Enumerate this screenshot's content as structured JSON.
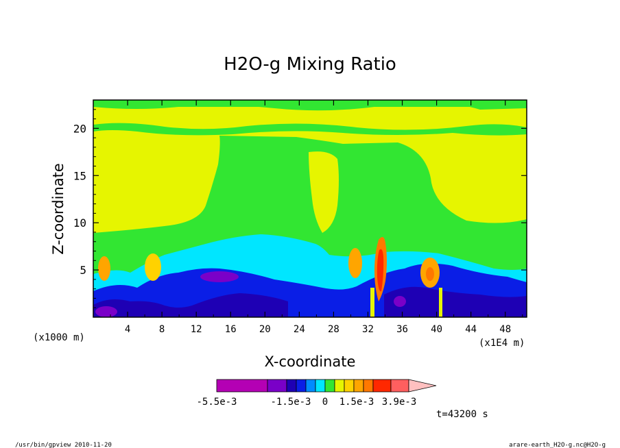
{
  "chart_data": {
    "type": "contour",
    "title": "H2O-g Mixing Ratio",
    "xlabel": "X-coordinate",
    "ylabel": "Z-coordinate",
    "x_unit": "(x1E4 m)",
    "y_unit": "(x1000 m)",
    "xlim": [
      0,
      50.5
    ],
    "ylim": [
      0,
      23
    ],
    "x_ticks": [
      "4",
      "8",
      "12",
      "16",
      "20",
      "24",
      "28",
      "32",
      "36",
      "40",
      "44",
      "48"
    ],
    "x_tick_values": [
      4,
      8,
      12,
      16,
      20,
      24,
      28,
      32,
      36,
      40,
      44,
      48
    ],
    "y_ticks": [
      "5",
      "10",
      "15",
      "20"
    ],
    "y_tick_values": [
      5,
      10,
      15,
      20
    ],
    "time_label": "t=43200 s",
    "colorbar": {
      "colors": [
        "#b400b4",
        "#7a00c8",
        "#1e00b4",
        "#0a1ee6",
        "#008cff",
        "#00e6ff",
        "#32e632",
        "#e6f500",
        "#ffd200",
        "#ffa500",
        "#ff7800",
        "#ff2800",
        "#ff5f5f",
        "#ff9696",
        "#ffc0c0"
      ],
      "labels": [
        "-5.5e-3",
        "-1.5e-3",
        "0",
        "1.5e-3",
        "3.9e-3"
      ]
    },
    "field_bands": [
      {
        "name": "top-green-band",
        "color": "#32e632"
      },
      {
        "name": "upper-yellow",
        "color": "#e6f500"
      },
      {
        "name": "mid-green",
        "color": "#32e632"
      },
      {
        "name": "cyan-layer",
        "color": "#00e6ff"
      },
      {
        "name": "blue-layer",
        "color": "#0a1ee6"
      },
      {
        "name": "dark-blue",
        "color": "#1e00b4"
      },
      {
        "name": "purple",
        "color": "#7a00c8"
      },
      {
        "name": "orange-cells",
        "color": "#ffa500"
      },
      {
        "name": "red-core",
        "color": "#ff2800"
      }
    ]
  },
  "footer": {
    "left": "/usr/bin/gpview  2010-11-20",
    "right": "arare-earth_H2O-g.nc@H2O-g"
  }
}
